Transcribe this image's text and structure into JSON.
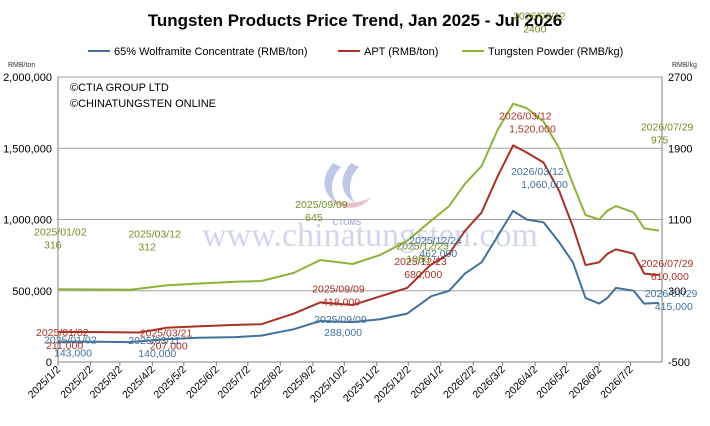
{
  "chart_data": {
    "type": "line",
    "title": "Tungsten Products Price Trend, Jan 2025 - Jul 2026",
    "left_axis": {
      "unit": "RMB/ton",
      "ylim": [
        0,
        2000000
      ],
      "ticks": [
        "0",
        "500,000",
        "1,000,000",
        "1,500,000",
        "2,000,000"
      ]
    },
    "right_axis": {
      "unit": "RMB/kg",
      "ylim": [
        -500,
        2700
      ],
      "ticks": [
        "-500",
        "300",
        "1100",
        "1900",
        "2700"
      ]
    },
    "x_labels": [
      "2025/1/2",
      "2025/2/2",
      "2025/3/2",
      "2025/4/2",
      "2025/5/2",
      "2025/6/2",
      "2025/7/2",
      "2025/8/2",
      "2025/9/2",
      "2025/10/2",
      "2025/11/2",
      "2025/12/2",
      "2026/1/2",
      "2026/2/2",
      "2026/3/2",
      "2026/4/2",
      "2026/5/2",
      "2026/6/2",
      "2026/7/2"
    ],
    "grid": "horizontal",
    "legend_position": "top",
    "credits": [
      "©CTIA GROUP LTD",
      "©CHINATUNGSTEN ONLINE"
    ],
    "watermark": {
      "text": "www.chinatungsten.com",
      "logo_text": "CTOMS"
    },
    "series": [
      {
        "name": "65% Wolframite Concentrate (RMB/ton)",
        "color": "#41719c",
        "axis": "left",
        "points": [
          [
            "2025/01/02",
            143000
          ],
          [
            "2025/02/10",
            142000
          ],
          [
            "2025/03/11",
            140000
          ],
          [
            "2025/04/15",
            160000
          ],
          [
            "2025/05/15",
            170000
          ],
          [
            "2025/06/20",
            175000
          ],
          [
            "2025/07/15",
            185000
          ],
          [
            "2025/08/15",
            230000
          ],
          [
            "2025/09/09",
            288000
          ],
          [
            "2025/10/10",
            280000
          ],
          [
            "2025/11/05",
            300000
          ],
          [
            "2025/12/01",
            340000
          ],
          [
            "2025/12/24",
            462000
          ],
          [
            "2026/01/10",
            500000
          ],
          [
            "2026/01/25",
            620000
          ],
          [
            "2026/02/10",
            700000
          ],
          [
            "2026/02/25",
            880000
          ],
          [
            "2026/03/12",
            1060000
          ],
          [
            "2026/03/25",
            1000000
          ],
          [
            "2026/04/10",
            980000
          ],
          [
            "2026/04/25",
            840000
          ],
          [
            "2026/05/08",
            700000
          ],
          [
            "2026/05/20",
            450000
          ],
          [
            "2026/06/02",
            410000
          ],
          [
            "2026/06/10",
            450000
          ],
          [
            "2026/06/18",
            520000
          ],
          [
            "2026/07/05",
            500000
          ],
          [
            "2026/07/15",
            410000
          ],
          [
            "2026/07/29",
            415000
          ]
        ]
      },
      {
        "name": "APT (RMB/ton)",
        "color": "#a93226",
        "axis": "left",
        "points": [
          [
            "2025/01/02",
            211000
          ],
          [
            "2025/02/10",
            210000
          ],
          [
            "2025/03/21",
            207000
          ],
          [
            "2025/04/15",
            240000
          ],
          [
            "2025/05/15",
            250000
          ],
          [
            "2025/06/20",
            260000
          ],
          [
            "2025/07/15",
            265000
          ],
          [
            "2025/08/15",
            340000
          ],
          [
            "2025/09/09",
            418000
          ],
          [
            "2025/10/10",
            400000
          ],
          [
            "2025/11/05",
            460000
          ],
          [
            "2025/12/01",
            520000
          ],
          [
            "2025/12/23",
            680000
          ],
          [
            "2026/01/10",
            760000
          ],
          [
            "2026/01/25",
            920000
          ],
          [
            "2026/02/10",
            1050000
          ],
          [
            "2026/02/25",
            1300000
          ],
          [
            "2026/03/12",
            1520000
          ],
          [
            "2026/03/25",
            1470000
          ],
          [
            "2026/04/10",
            1400000
          ],
          [
            "2026/04/25",
            1200000
          ],
          [
            "2026/05/08",
            950000
          ],
          [
            "2026/05/20",
            680000
          ],
          [
            "2026/06/02",
            700000
          ],
          [
            "2026/06/10",
            760000
          ],
          [
            "2026/06/18",
            790000
          ],
          [
            "2026/07/05",
            760000
          ],
          [
            "2026/07/15",
            620000
          ],
          [
            "2026/07/29",
            610000
          ]
        ]
      },
      {
        "name": "Tungsten Powder (RMB/kg)",
        "color": "#8db33a",
        "axis": "right",
        "points": [
          [
            "2025/01/02",
            316
          ],
          [
            "2025/02/10",
            314
          ],
          [
            "2025/03/12",
            312
          ],
          [
            "2025/04/15",
            360
          ],
          [
            "2025/05/15",
            380
          ],
          [
            "2025/06/20",
            400
          ],
          [
            "2025/07/15",
            410
          ],
          [
            "2025/08/15",
            500
          ],
          [
            "2025/09/09",
            645
          ],
          [
            "2025/10/10",
            600
          ],
          [
            "2025/11/05",
            700
          ],
          [
            "2025/12/01",
            860
          ],
          [
            "2025/12/23",
            1080
          ],
          [
            "2026/01/10",
            1250
          ],
          [
            "2026/01/25",
            1500
          ],
          [
            "2026/02/10",
            1700
          ],
          [
            "2026/02/25",
            2100
          ],
          [
            "2026/03/12",
            2400
          ],
          [
            "2026/03/25",
            2350
          ],
          [
            "2026/04/10",
            2200
          ],
          [
            "2026/04/25",
            1900
          ],
          [
            "2026/05/08",
            1500
          ],
          [
            "2026/05/20",
            1150
          ],
          [
            "2026/06/02",
            1100
          ],
          [
            "2026/06/10",
            1200
          ],
          [
            "2026/06/18",
            1250
          ],
          [
            "2026/07/05",
            1180
          ],
          [
            "2026/07/15",
            1000
          ],
          [
            "2026/07/29",
            975
          ]
        ]
      }
    ],
    "annotations": [
      {
        "date": "2025/01/02",
        "line1": "2025/01/02",
        "line2": "143,000",
        "series": 0,
        "color": "#41719c"
      },
      {
        "date": "2025/03/11",
        "line1": "2025/03/11",
        "line2": "140,000",
        "series": 0,
        "color": "#41719c"
      },
      {
        "date": "2025/09/09",
        "line1": "2025/09/09",
        "line2": "288,000",
        "series": 0,
        "color": "#41719c"
      },
      {
        "date": "2025/12/24",
        "line1": "2025/12/24",
        "line2": "462,000",
        "series": 0,
        "color": "#41719c"
      },
      {
        "date": "2026/03/12",
        "line1": "2026/03/12",
        "line2": "1,060,000",
        "series": 0,
        "color": "#41719c"
      },
      {
        "date": "2026/07/29",
        "line1": "2026/07/29",
        "line2": "415,000",
        "series": 0,
        "color": "#41719c"
      },
      {
        "date": "2025/01/02",
        "line1": "2025/01/02",
        "line2": "211,000",
        "series": 1,
        "color": "#a93226"
      },
      {
        "date": "2025/03/21",
        "line1": "2025/03/21",
        "line2": "207,000",
        "series": 1,
        "color": "#a93226"
      },
      {
        "date": "2025/09/09",
        "line1": "2025/09/09",
        "line2": "418,000",
        "series": 1,
        "color": "#a93226"
      },
      {
        "date": "2025/12/23",
        "line1": "2025/12/23",
        "line2": "680,000",
        "series": 1,
        "color": "#a93226"
      },
      {
        "date": "2026/03/12",
        "line1": "2026/03/12",
        "line2": "1,520,000",
        "series": 1,
        "color": "#a93226"
      },
      {
        "date": "2026/07/29",
        "line1": "2026/07/29",
        "line2": "610,000",
        "series": 1,
        "color": "#a93226"
      },
      {
        "date": "2025/01/02",
        "line1": "2025/01/02",
        "line2": "316",
        "series": 2,
        "color": "#6e8f24"
      },
      {
        "date": "2025/03/12",
        "line1": "2025/03/12",
        "line2": "312",
        "series": 2,
        "color": "#6e8f24"
      },
      {
        "date": "2025/09/09",
        "line1": "2025/09/09",
        "line2": "645",
        "series": 2,
        "color": "#6e8f24"
      },
      {
        "date": "2025/12/23",
        "line1": "2025/12/23",
        "line2": "1080",
        "series": 2,
        "color": "#6e8f24"
      },
      {
        "date": "2026/03/12",
        "line1": "2026/03/12",
        "line2": "2400",
        "series": 2,
        "color": "#6e8f24"
      },
      {
        "date": "2026/07/29",
        "line1": "2026/07/29",
        "line2": "975",
        "series": 2,
        "color": "#6e8f24"
      }
    ]
  }
}
